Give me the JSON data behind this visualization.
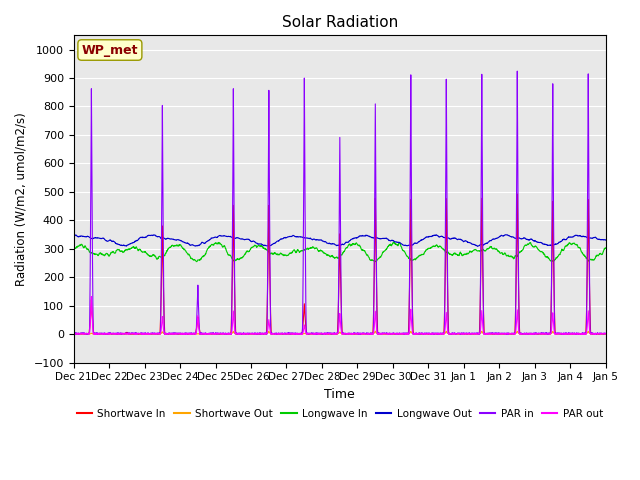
{
  "title": "Solar Radiation",
  "xlabel": "Time",
  "ylabel": "Radiation (W/m2, umol/m2/s)",
  "ylim": [
    -100,
    1050
  ],
  "yticks": [
    -100,
    0,
    100,
    200,
    300,
    400,
    500,
    600,
    700,
    800,
    900,
    1000
  ],
  "annotation": "WP_met",
  "annotation_color": "#8B0000",
  "annotation_bg": "#FFFFCC",
  "bg_color": "#E8E8E8",
  "series": {
    "shortwave_in": {
      "label": "Shortwave In",
      "color": "#FF0000"
    },
    "shortwave_out": {
      "label": "Shortwave Out",
      "color": "#FFA500"
    },
    "longwave_in": {
      "label": "Longwave In",
      "color": "#00CC00"
    },
    "longwave_out": {
      "label": "Longwave Out",
      "color": "#0000CC"
    },
    "par_in": {
      "label": "PAR in",
      "color": "#8B00FF"
    },
    "par_out": {
      "label": "PAR out",
      "color": "#FF00FF"
    }
  },
  "x_tick_labels": [
    "Dec 21",
    "Dec 22",
    "Dec 23",
    "Dec 24",
    "Dec 25",
    "Dec 26",
    "Dec 27",
    "Dec 28",
    "Dec 29",
    "Dec 30",
    "Dec 31",
    "Jan 1",
    "Jan 2",
    "Jan 3",
    "Jan 4",
    "Jan 5"
  ],
  "n_days": 15,
  "pts_per_day": 144,
  "par_in_peaks": [
    860,
    0,
    800,
    170,
    860,
    855,
    895,
    690,
    805,
    910,
    895,
    910,
    920,
    875,
    910
  ],
  "par_out_peaks": [
    130,
    0,
    60,
    65,
    80,
    50,
    30,
    70,
    80,
    85,
    75,
    80,
    85,
    75,
    80
  ],
  "sw_in_peaks": [
    120,
    5,
    380,
    60,
    450,
    450,
    105,
    350,
    475,
    470,
    475,
    475,
    490,
    465,
    470
  ],
  "lw_in_base": 300,
  "lw_out_base": 335
}
